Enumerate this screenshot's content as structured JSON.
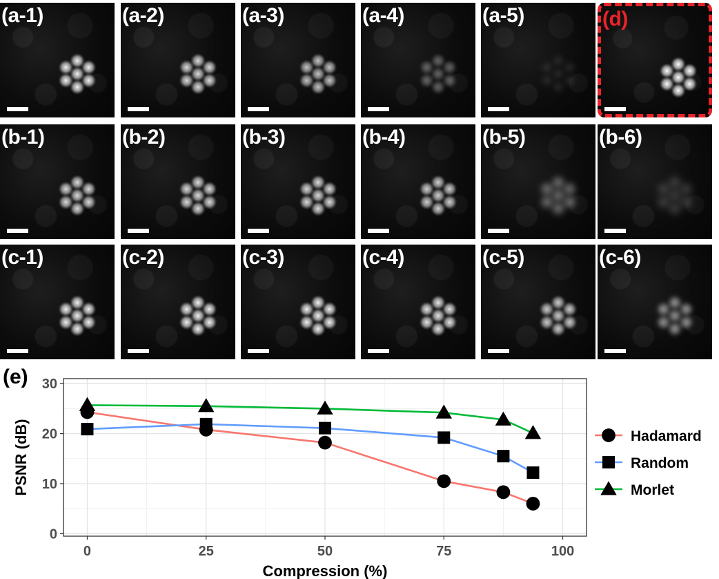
{
  "panels": [
    {
      "label": "(a-1)",
      "quality": 0.95,
      "blur": 0.0
    },
    {
      "label": "(a-2)",
      "quality": 0.85,
      "blur": 0.0
    },
    {
      "label": "(a-3)",
      "quality": 0.75,
      "blur": 0.0
    },
    {
      "label": "(a-4)",
      "quality": 0.35,
      "blur": 0.3
    },
    {
      "label": "(a-5)",
      "quality": 0.08,
      "blur": 0.6
    },
    {
      "label": "(d)",
      "quality": 1.0,
      "blur": 0.0,
      "reference": true
    },
    {
      "label": "(b-1)",
      "quality": 0.85,
      "blur": 0.0
    },
    {
      "label": "(b-2)",
      "quality": 0.85,
      "blur": 0.0
    },
    {
      "label": "(b-3)",
      "quality": 0.85,
      "blur": 0.0
    },
    {
      "label": "(b-4)",
      "quality": 0.8,
      "blur": 0.0
    },
    {
      "label": "(b-5)",
      "quality": 0.5,
      "blur": 0.9
    },
    {
      "label": "(b-6)",
      "quality": 0.25,
      "blur": 1.0
    },
    {
      "label": "(c-1)",
      "quality": 0.95,
      "blur": 0.0
    },
    {
      "label": "(c-2)",
      "quality": 0.95,
      "blur": 0.0
    },
    {
      "label": "(c-3)",
      "quality": 0.95,
      "blur": 0.0
    },
    {
      "label": "(c-4)",
      "quality": 0.9,
      "blur": 0.0
    },
    {
      "label": "(c-5)",
      "quality": 0.8,
      "blur": 0.2
    },
    {
      "label": "(c-6)",
      "quality": 0.6,
      "blur": 0.6
    }
  ],
  "panel_e_label": "(e)",
  "chart_data": {
    "type": "line",
    "title": "",
    "xlabel": "Compression (%)",
    "ylabel": "PSNR (dB)",
    "xlim": [
      -5,
      105
    ],
    "ylim": [
      -0.5,
      31
    ],
    "xticks": [
      0,
      25,
      50,
      75,
      100
    ],
    "yticks": [
      0,
      10,
      20,
      30
    ],
    "grid": true,
    "legend_position": "right",
    "series": [
      {
        "name": "Hadamard",
        "color": "#f8766d",
        "marker": "circle",
        "x": [
          0,
          25,
          50,
          75,
          87.5,
          93.75
        ],
        "y": [
          24.3,
          20.8,
          18.2,
          10.5,
          8.3,
          6.0
        ]
      },
      {
        "name": "Random",
        "color": "#619cff",
        "marker": "square",
        "x": [
          0,
          25,
          50,
          75,
          87.5,
          93.75
        ],
        "y": [
          20.9,
          21.9,
          21.1,
          19.2,
          15.5,
          12.2
        ]
      },
      {
        "name": "Morlet",
        "color": "#00ba38",
        "marker": "triangle",
        "x": [
          0,
          25,
          50,
          75,
          87.5,
          93.75
        ],
        "y": [
          25.7,
          25.5,
          25.0,
          24.2,
          22.8,
          20.1
        ]
      }
    ]
  }
}
